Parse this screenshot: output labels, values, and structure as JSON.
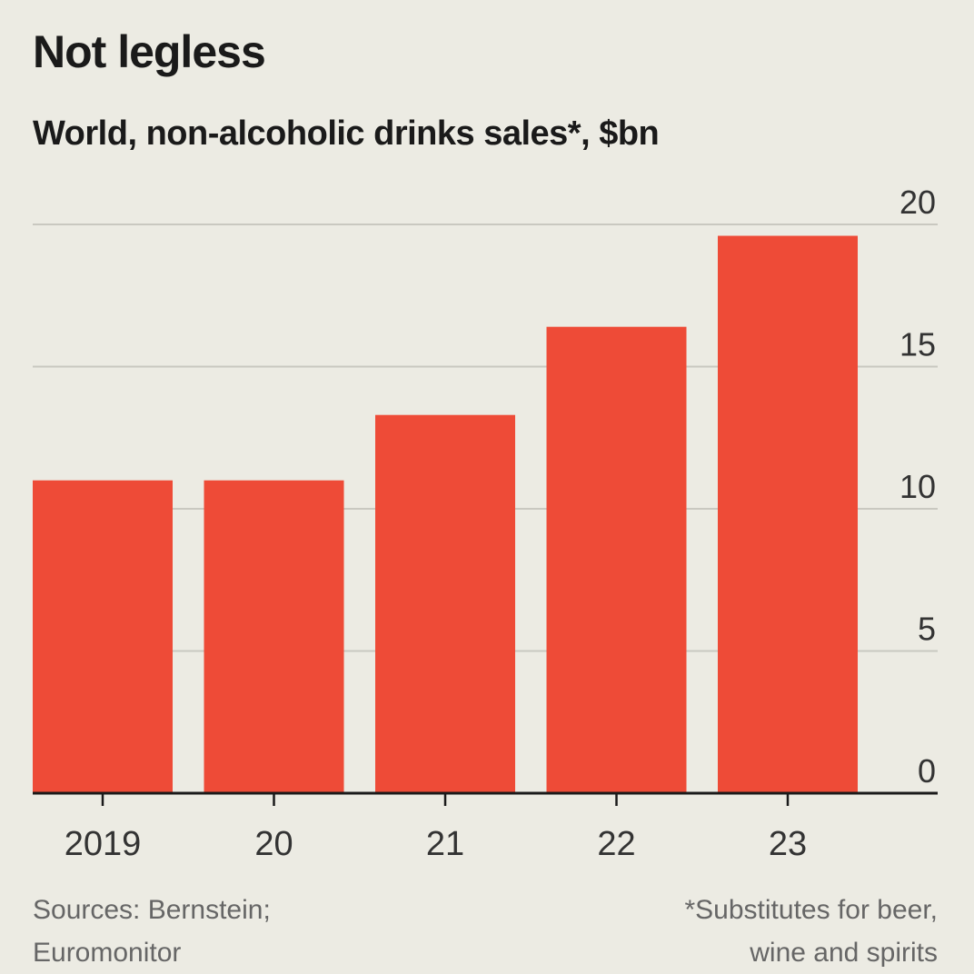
{
  "header": {
    "title": "Not legless",
    "subtitle": "World, non-alcoholic drinks sales*, $bn"
  },
  "footer": {
    "source": "Sources: Bernstein; Euromonitor",
    "footnote": "*Substitutes for beer, wine and spirits"
  },
  "colors": {
    "bar": "#EE4B37",
    "grid": "#C9C8C0",
    "axis": "#1A1A1A",
    "tick_text": "#333333",
    "background": "#ECEBE3"
  },
  "chart_data": {
    "type": "bar",
    "title": "Not legless",
    "subtitle": "World, non-alcoholic drinks sales*, $bn",
    "categories": [
      "2019",
      "20",
      "21",
      "22",
      "23"
    ],
    "values": [
      11.0,
      11.0,
      13.3,
      16.4,
      19.6
    ],
    "ylim": [
      0,
      20
    ],
    "yticks": [
      "0",
      "5",
      "10",
      "15",
      "20"
    ],
    "xlabel": "",
    "ylabel": "",
    "y_axis_side": "right",
    "grid": true
  }
}
